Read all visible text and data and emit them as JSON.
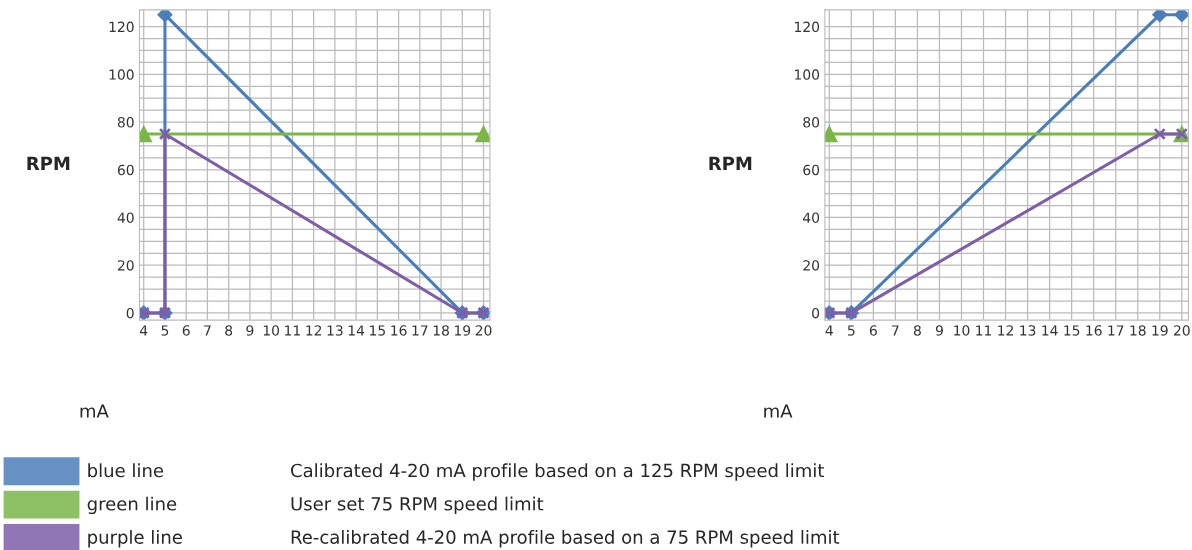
{
  "chart_data": [
    {
      "type": "line",
      "xlabel": "mA",
      "ylabel": "RPM",
      "xlim": [
        3.8,
        20.3
      ],
      "ylim": [
        -3,
        127
      ],
      "xticks": [
        4,
        5,
        6,
        7,
        8,
        9,
        10,
        11,
        12,
        13,
        14,
        15,
        16,
        17,
        18,
        19,
        20
      ],
      "yticks": [
        0,
        {
          "value": 5,
          "label": null
        },
        {
          "value": 10,
          "label": null
        },
        {
          "value": 15,
          "label": null
        },
        20,
        {
          "value": 25,
          "label": null
        },
        {
          "value": 30,
          "label": null
        },
        {
          "value": 35,
          "label": null
        },
        40,
        {
          "value": 45,
          "label": null
        },
        {
          "value": 50,
          "label": null
        },
        {
          "value": 55,
          "label": null
        },
        60,
        {
          "value": 65,
          "label": null
        },
        {
          "value": 70,
          "label": null
        },
        {
          "value": 75,
          "label": null
        },
        80,
        {
          "value": 85,
          "label": null
        },
        {
          "value": 90,
          "label": null
        },
        {
          "value": 95,
          "label": null
        },
        100,
        {
          "value": 105,
          "label": null
        },
        {
          "value": 110,
          "label": null
        },
        {
          "value": 115,
          "label": null
        },
        120
      ],
      "grid": true,
      "legend": "bottom",
      "series": [
        {
          "name": "blue line",
          "color": "#4a7ebb",
          "marker": "diamond",
          "x": [
            4,
            5,
            5,
            19,
            20
          ],
          "values": [
            0,
            0,
            125,
            0,
            0
          ]
        },
        {
          "name": "green line",
          "color": "#7ab648",
          "marker": "triangle",
          "x": [
            4,
            20
          ],
          "values": [
            75,
            75
          ]
        },
        {
          "name": "purple line",
          "color": "#7e5ea8",
          "marker": "cross",
          "x": [
            4,
            5,
            5,
            19,
            20
          ],
          "values": [
            0,
            0,
            75,
            0,
            0
          ]
        }
      ],
      "annotations": [
        "Calibrated 4-20 mA profile based on a 125 RPM speed limit",
        "User set 75 RPM speed limit",
        "Re-calibrated 4-20 mA profile based on a 75 RPM speed limit"
      ]
    },
    {
      "type": "line",
      "xlabel": "mA",
      "ylabel": "RPM",
      "xlim": [
        3.8,
        20.3
      ],
      "ylim": [
        -3,
        127
      ],
      "xticks": [
        4,
        5,
        6,
        7,
        8,
        9,
        10,
        11,
        12,
        13,
        14,
        15,
        16,
        17,
        18,
        19,
        20
      ],
      "yticks": [
        0,
        {
          "value": 5,
          "label": null
        },
        {
          "value": 10,
          "label": null
        },
        {
          "value": 15,
          "label": null
        },
        20,
        {
          "value": 25,
          "label": null
        },
        {
          "value": 30,
          "label": null
        },
        {
          "value": 35,
          "label": null
        },
        40,
        {
          "value": 45,
          "label": null
        },
        {
          "value": 50,
          "label": null
        },
        {
          "value": 55,
          "label": null
        },
        60,
        {
          "value": 65,
          "label": null
        },
        {
          "value": 70,
          "label": null
        },
        {
          "value": 75,
          "label": null
        },
        80,
        {
          "value": 85,
          "label": null
        },
        {
          "value": 90,
          "label": null
        },
        {
          "value": 95,
          "label": null
        },
        100,
        {
          "value": 105,
          "label": null
        },
        {
          "value": 110,
          "label": null
        },
        {
          "value": 115,
          "label": null
        },
        120
      ],
      "grid": true,
      "series": [
        {
          "color": "#4a7ebb",
          "marker": "diamond",
          "x": [
            4,
            5,
            19,
            20
          ],
          "values": [
            0,
            0,
            125,
            125
          ]
        },
        {
          "color": "#7ab648",
          "marker": "triangle",
          "x": [
            4,
            20
          ],
          "values": [
            75,
            75
          ]
        },
        {
          "color": "#7e5ea8",
          "marker": "cross",
          "x": [
            4,
            5,
            19,
            20
          ],
          "values": [
            0,
            0,
            75,
            75
          ]
        }
      ]
    }
  ]
}
